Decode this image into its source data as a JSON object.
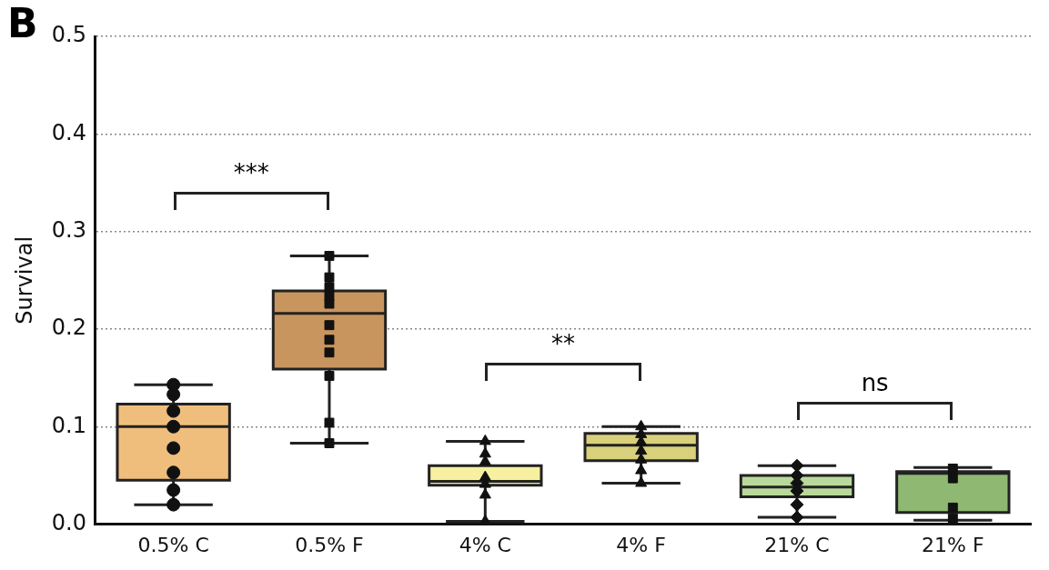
{
  "chart_data": {
    "type": "box",
    "title": "B",
    "ylabel": "Survival",
    "categories": [
      "0.5% C",
      "0.5% F",
      "4% C",
      "4% F",
      "21% C",
      "21% F"
    ],
    "colors": [
      "#f0be7c",
      "#c9955e",
      "#f6f0a0",
      "#d8d07a",
      "#b9d99a",
      "#8fb873"
    ],
    "boxes": [
      {
        "low": 0.02,
        "q1": 0.045,
        "median": 0.1,
        "q3": 0.123,
        "high": 0.143
      },
      {
        "low": 0.083,
        "q1": 0.159,
        "median": 0.216,
        "q3": 0.239,
        "high": 0.275
      },
      {
        "low": 0.003,
        "q1": 0.04,
        "median": 0.044,
        "q3": 0.06,
        "high": 0.085
      },
      {
        "low": 0.042,
        "q1": 0.065,
        "median": 0.081,
        "q3": 0.093,
        "high": 0.1
      },
      {
        "low": 0.007,
        "q1": 0.028,
        "median": 0.038,
        "q3": 0.05,
        "high": 0.06
      },
      {
        "low": 0.004,
        "q1": 0.012,
        "median": 0.052,
        "q3": 0.054,
        "high": 0.058
      }
    ],
    "series": [
      {
        "type": "scatter",
        "marker": "circle",
        "color": "#111111",
        "x": [
          "0.5% C",
          "0.5% C",
          "0.5% C",
          "0.5% C",
          "0.5% C",
          "0.5% C",
          "0.5% C",
          "0.5% C"
        ],
        "values": [
          0.143,
          0.133,
          0.116,
          0.1,
          0.078,
          0.053,
          0.035,
          0.02
        ]
      },
      {
        "type": "scatter",
        "marker": "square",
        "color": "#111111",
        "x": [
          "0.5% F",
          "0.5% F",
          "0.5% F",
          "0.5% F",
          "0.5% F",
          "0.5% F",
          "0.5% F",
          "0.5% F",
          "0.5% F",
          "0.5% F",
          "0.5% F"
        ],
        "values": [
          0.275,
          0.253,
          0.243,
          0.234,
          0.226,
          0.204,
          0.189,
          0.176,
          0.152,
          0.104,
          0.083
        ]
      },
      {
        "type": "scatter",
        "marker": "triangle",
        "color": "#111111",
        "x": [
          "4% C",
          "4% C",
          "4% C",
          "4% C",
          "4% C",
          "4% C",
          "4% C"
        ],
        "values": [
          0.085,
          0.072,
          0.064,
          0.048,
          0.041,
          0.03,
          0.003
        ]
      },
      {
        "type": "scatter",
        "marker": "triangle",
        "color": "#111111",
        "x": [
          "4% F",
          "4% F",
          "4% F",
          "4% F",
          "4% F",
          "4% F",
          "4% F"
        ],
        "values": [
          0.1,
          0.092,
          0.084,
          0.075,
          0.066,
          0.055,
          0.042
        ]
      },
      {
        "type": "scatter",
        "marker": "diamond",
        "color": "#111111",
        "x": [
          "21% C",
          "21% C",
          "21% C",
          "21% C",
          "21% C",
          "21% C"
        ],
        "values": [
          0.06,
          0.05,
          0.042,
          0.034,
          0.02,
          0.007
        ]
      },
      {
        "type": "scatter",
        "marker": "square",
        "color": "#111111",
        "x": [
          "21% F",
          "21% F",
          "21% F",
          "21% F"
        ],
        "values": [
          0.057,
          0.047,
          0.017,
          0.006
        ]
      }
    ],
    "ylim": [
      0,
      0.5
    ],
    "yticks": [
      {
        "value": 0,
        "label": "0.0"
      },
      0.1,
      0.2,
      0.3,
      0.4,
      0.5
    ],
    "grid": "y",
    "annotations": [
      "***",
      "**",
      "ns"
    ]
  }
}
